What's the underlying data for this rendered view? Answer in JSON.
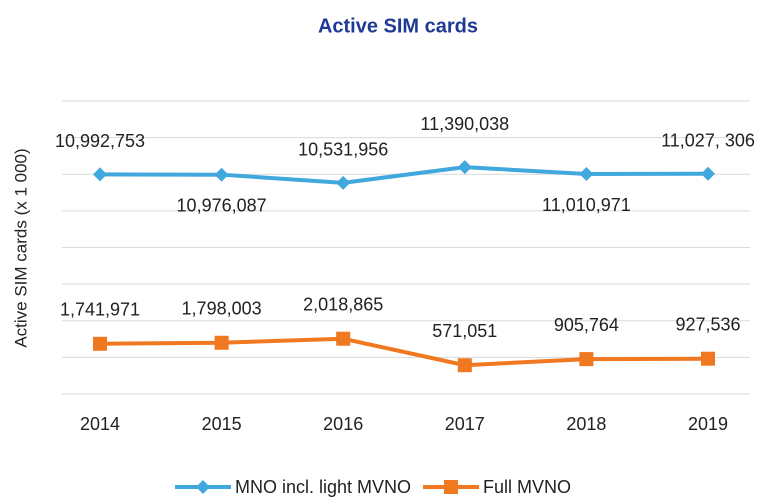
{
  "chart_data": {
    "type": "line",
    "title": "Active SIM cards",
    "y_label": "Active SIM cards (x 1 000)",
    "categories": [
      "2014",
      "2015",
      "2016",
      "2017",
      "2018",
      "2019"
    ],
    "series": [
      {
        "name": "MNO incl. light MVNO",
        "color": "#41a8dd",
        "marker": "diamond",
        "values": [
          10992753,
          10976087,
          10531956,
          11390038,
          11010971,
          11027306
        ],
        "value_labels": [
          "10,992,753",
          "10,976,087",
          "10,531,956",
          "11,390,038",
          "11,010,971",
          "11,027, 306"
        ]
      },
      {
        "name": "Full MVNO",
        "color": "#f07820",
        "marker": "square",
        "values": [
          1741971,
          1798003,
          2018865,
          571051,
          905764,
          927536
        ],
        "value_labels": [
          "1,741,971",
          "1,798,003",
          "2,018,865",
          "571,051",
          "905,764",
          "927,536"
        ]
      }
    ],
    "ylim": [
      -1000000,
      15000000
    ],
    "yticks": [
      -1000000,
      1000000,
      3000000,
      5000000,
      7000000,
      9000000,
      11000000,
      13000000,
      15000000
    ],
    "grid": true,
    "legend": "bottom"
  }
}
